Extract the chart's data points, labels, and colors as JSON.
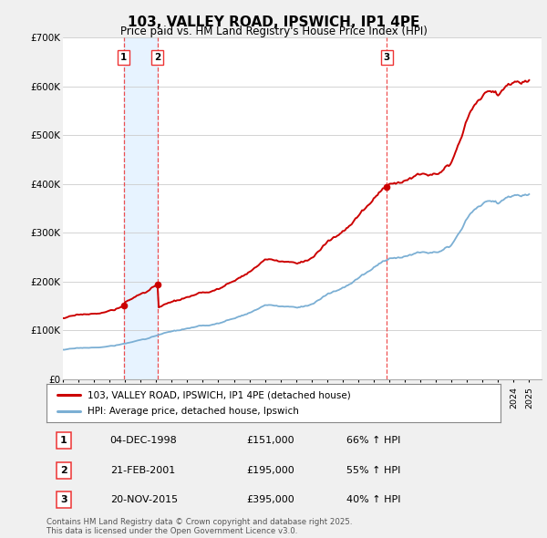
{
  "title": "103, VALLEY ROAD, IPSWICH, IP1 4PE",
  "subtitle": "Price paid vs. HM Land Registry's House Price Index (HPI)",
  "ylim": [
    0,
    700000
  ],
  "yticks": [
    0,
    100000,
    200000,
    300000,
    400000,
    500000,
    600000,
    700000
  ],
  "ytick_labels": [
    "£0",
    "£100K",
    "£200K",
    "£300K",
    "£400K",
    "£500K",
    "£600K",
    "£700K"
  ],
  "red_line_label": "103, VALLEY ROAD, IPSWICH, IP1 4PE (detached house)",
  "blue_line_label": "HPI: Average price, detached house, Ipswich",
  "purchases": [
    {
      "date": "1998-12-04",
      "price": 151000,
      "label": "1",
      "hpi_pct": "66% ↑ HPI",
      "date_str": "04-DEC-1998"
    },
    {
      "date": "2001-02-21",
      "price": 195000,
      "label": "2",
      "hpi_pct": "55% ↑ HPI",
      "date_str": "21-FEB-2001"
    },
    {
      "date": "2015-11-20",
      "price": 395000,
      "label": "3",
      "hpi_pct": "40% ↑ HPI",
      "date_str": "20-NOV-2015"
    }
  ],
  "footnote": "Contains HM Land Registry data © Crown copyright and database right 2025.\nThis data is licensed under the Open Government Licence v3.0.",
  "bg_color": "#f0f0f0",
  "plot_bg_color": "#ffffff",
  "red_color": "#cc0000",
  "blue_color": "#7bafd4",
  "vline_color": "#ee3333",
  "grid_color": "#cccccc",
  "shade_color": "#ddeeff"
}
